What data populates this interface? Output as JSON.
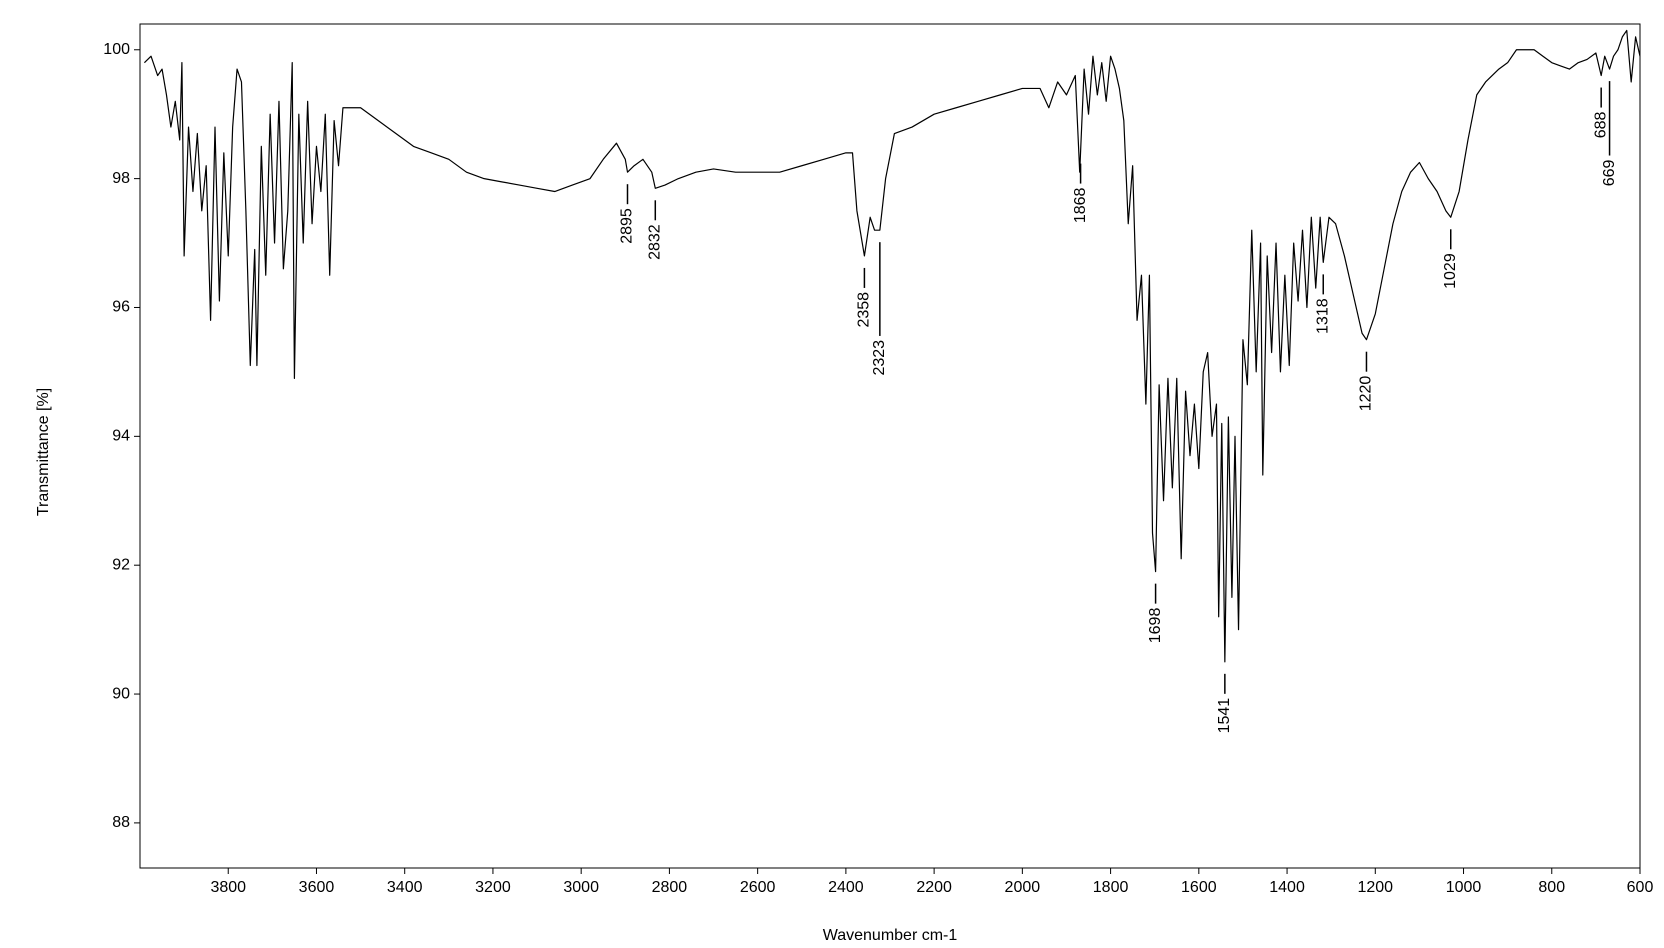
{
  "chart_data": {
    "type": "line",
    "xlabel": "Wavenumber cm-1",
    "ylabel": "Transmittance [%]",
    "xlim": [
      4000,
      600
    ],
    "ylim": [
      87.3,
      100.4
    ],
    "xticks": [
      3800,
      3600,
      3400,
      3200,
      3000,
      2800,
      2600,
      2400,
      2200,
      2000,
      1800,
      1600,
      1400,
      1200,
      1000,
      800,
      600
    ],
    "yticks": [
      88,
      90,
      92,
      94,
      96,
      98,
      100
    ],
    "color": "#000000",
    "x": [
      3990,
      3975,
      3960,
      3950,
      3940,
      3930,
      3920,
      3910,
      3905,
      3900,
      3890,
      3880,
      3870,
      3860,
      3850,
      3840,
      3830,
      3820,
      3810,
      3800,
      3790,
      3780,
      3770,
      3760,
      3750,
      3740,
      3735,
      3725,
      3715,
      3705,
      3695,
      3685,
      3675,
      3665,
      3655,
      3650,
      3640,
      3630,
      3620,
      3610,
      3600,
      3590,
      3580,
      3570,
      3560,
      3550,
      3540,
      3500,
      3460,
      3420,
      3380,
      3340,
      3300,
      3260,
      3220,
      3180,
      3140,
      3100,
      3060,
      3020,
      2980,
      2950,
      2920,
      2900,
      2895,
      2880,
      2860,
      2840,
      2832,
      2810,
      2780,
      2740,
      2700,
      2650,
      2600,
      2550,
      2500,
      2450,
      2400,
      2385,
      2375,
      2358,
      2345,
      2335,
      2323,
      2310,
      2290,
      2250,
      2200,
      2150,
      2100,
      2050,
      2000,
      1960,
      1940,
      1920,
      1900,
      1880,
      1870,
      1860,
      1850,
      1840,
      1830,
      1820,
      1810,
      1800,
      1790,
      1780,
      1770,
      1760,
      1750,
      1740,
      1730,
      1720,
      1712,
      1705,
      1698,
      1690,
      1680,
      1670,
      1660,
      1650,
      1640,
      1630,
      1620,
      1610,
      1600,
      1590,
      1580,
      1570,
      1560,
      1555,
      1548,
      1541,
      1533,
      1525,
      1518,
      1510,
      1500,
      1490,
      1480,
      1470,
      1460,
      1455,
      1445,
      1435,
      1425,
      1415,
      1405,
      1395,
      1385,
      1375,
      1365,
      1355,
      1345,
      1335,
      1325,
      1318,
      1305,
      1290,
      1270,
      1250,
      1230,
      1220,
      1200,
      1180,
      1160,
      1140,
      1120,
      1100,
      1080,
      1060,
      1040,
      1029,
      1010,
      990,
      970,
      950,
      920,
      900,
      880,
      860,
      840,
      820,
      800,
      780,
      760,
      740,
      720,
      700,
      688,
      680,
      669,
      660,
      650,
      640,
      630,
      620,
      610,
      600
    ],
    "values": [
      99.8,
      99.9,
      99.6,
      99.7,
      99.3,
      98.8,
      99.2,
      98.6,
      99.8,
      96.8,
      98.8,
      97.8,
      98.7,
      97.5,
      98.2,
      95.8,
      98.8,
      96.1,
      98.4,
      96.8,
      98.8,
      99.7,
      99.5,
      97.5,
      95.1,
      96.9,
      95.1,
      98.5,
      96.5,
      99.0,
      97.0,
      99.2,
      96.6,
      97.5,
      99.8,
      94.9,
      99.0,
      97.0,
      99.2,
      97.3,
      98.5,
      97.8,
      99.0,
      96.5,
      98.9,
      98.2,
      99.1,
      99.1,
      98.9,
      98.7,
      98.5,
      98.4,
      98.3,
      98.1,
      98.0,
      97.95,
      97.9,
      97.85,
      97.8,
      97.9,
      98.0,
      98.3,
      98.55,
      98.3,
      98.1,
      98.2,
      98.3,
      98.1,
      97.85,
      97.9,
      98.0,
      98.1,
      98.15,
      98.1,
      98.1,
      98.1,
      98.2,
      98.3,
      98.4,
      98.4,
      97.5,
      96.8,
      97.4,
      97.2,
      97.2,
      98.0,
      98.7,
      98.8,
      99.0,
      99.1,
      99.2,
      99.3,
      99.4,
      99.4,
      99.1,
      99.5,
      99.3,
      99.6,
      98.1,
      99.7,
      99.0,
      99.9,
      99.3,
      99.8,
      99.2,
      99.9,
      99.7,
      99.4,
      98.9,
      97.3,
      98.2,
      95.8,
      96.5,
      94.5,
      96.5,
      92.5,
      91.9,
      94.8,
      93.0,
      94.9,
      93.2,
      94.9,
      92.1,
      94.7,
      93.7,
      94.5,
      93.5,
      95.0,
      95.3,
      94.0,
      94.5,
      91.2,
      94.2,
      90.5,
      94.3,
      91.5,
      94.0,
      91.0,
      95.5,
      94.8,
      97.2,
      95.0,
      97.0,
      93.4,
      96.8,
      95.3,
      97.0,
      95.0,
      96.5,
      95.1,
      97.0,
      96.1,
      97.2,
      96.0,
      97.4,
      96.3,
      97.4,
      96.7,
      97.4,
      97.3,
      96.8,
      96.2,
      95.6,
      95.5,
      95.9,
      96.6,
      97.3,
      97.8,
      98.1,
      98.25,
      98.0,
      97.8,
      97.5,
      97.4,
      97.8,
      98.6,
      99.3,
      99.5,
      99.7,
      99.8,
      100.0,
      100.0,
      100.0,
      99.9,
      99.8,
      99.75,
      99.7,
      99.8,
      99.85,
      99.95,
      99.6,
      99.9,
      99.7,
      99.9,
      100.0,
      100.2,
      100.3,
      99.5,
      100.2,
      99.9
    ],
    "peaks": [
      2895,
      2832,
      2358,
      2323,
      1868,
      1698,
      1541,
      1318,
      1220,
      1029,
      688,
      669
    ]
  }
}
